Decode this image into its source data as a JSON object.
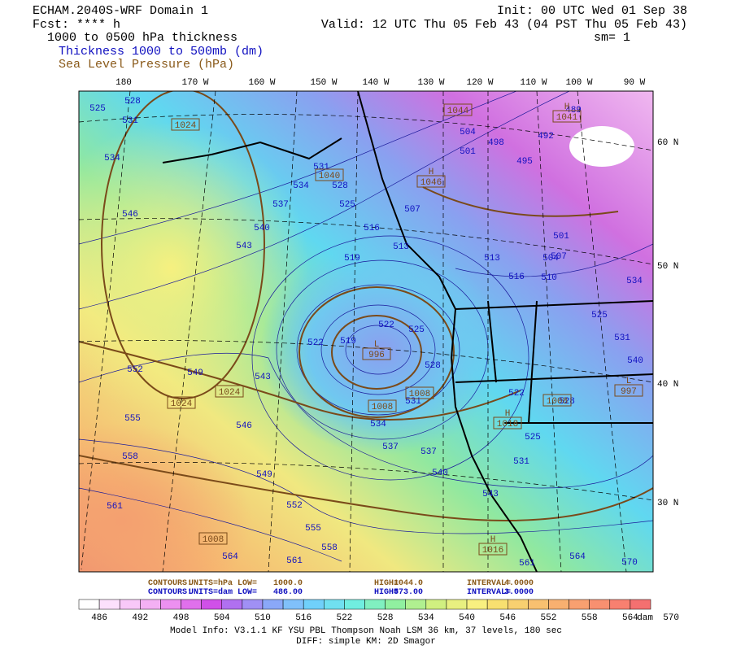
{
  "header": {
    "title": "ECHAM.2040S-WRF Domain 1",
    "fcst": "Fcst: **** h",
    "field": "1000 to 0500 hPa thickness",
    "legend_thickness": "Thickness 1000 to 500mb (dm)",
    "legend_pressure": "Sea Level Pressure (hPa)",
    "init": "Init: 00 UTC Wed 01 Sep 38",
    "valid": "Valid: 12 UTC Thu 05 Feb 43 (04 PST Thu 05 Feb 43)",
    "smoothing": "sm= 1"
  },
  "lon_labels": [
    "180",
    "170 W",
    "160 W",
    "150 W",
    "140 W",
    "130 W",
    "120 W",
    "110 W",
    "100 W",
    "90 W"
  ],
  "lat_labels": [
    "60 N",
    "50 N",
    "40 N",
    "30 N"
  ],
  "map_labels": {
    "thickness": [
      "528",
      "525",
      "531",
      "534",
      "546",
      "543",
      "540",
      "537",
      "534",
      "531",
      "528",
      "525",
      "516",
      "519",
      "507",
      "513",
      "504",
      "501",
      "498",
      "495",
      "492",
      "489",
      "501",
      "504",
      "507",
      "513",
      "510",
      "516",
      "522",
      "525",
      "519",
      "522",
      "528",
      "531",
      "534",
      "537",
      "537",
      "540",
      "543",
      "549",
      "543",
      "546",
      "549",
      "552",
      "555",
      "558",
      "561",
      "552",
      "555",
      "558",
      "561",
      "564",
      "561",
      "564",
      "570",
      "522",
      "525",
      "531",
      "528",
      "525",
      "531",
      "534",
      "540"
    ],
    "pressure": [
      {
        "center": "",
        "value": "1024"
      },
      {
        "center": "",
        "value": "1040"
      },
      {
        "center": "H",
        "value": "1046"
      },
      {
        "center": "",
        "value": "1044"
      },
      {
        "center": "H",
        "value": "1041"
      },
      {
        "center": "L",
        "value": "996"
      },
      {
        "center": "",
        "value": "1024"
      },
      {
        "center": "",
        "value": "1024"
      },
      {
        "center": "",
        "value": "1008"
      },
      {
        "center": "",
        "value": "1008"
      },
      {
        "center": "H",
        "value": "1018"
      },
      {
        "center": "",
        "value": "1008"
      },
      {
        "center": "H",
        "value": "1016"
      },
      {
        "center": "",
        "value": "1008"
      },
      {
        "center": "L",
        "value": "997"
      }
    ]
  },
  "contour_info": [
    [
      "CONTOURS:",
      "UNITS=hPa",
      "LOW=",
      "1000.0",
      "HIGH=",
      "1044.0",
      "INTERVAL=",
      "4.0000"
    ],
    [
      "CONTOURS:",
      "UNITS=dam",
      "LOW=",
      "486.00",
      "HIGH=",
      "573.00",
      "INTERVAL=",
      "3.0000"
    ]
  ],
  "colorbar": {
    "labels": [
      "486",
      "492",
      "498",
      "504",
      "510",
      "516",
      "522",
      "528",
      "534",
      "540",
      "546",
      "552",
      "558",
      "564",
      "570"
    ],
    "unit": "dam"
  },
  "footer": [
    "Model Info: V3.1.1    KF       YSU PBL   Thompson     Noah LSM  36 km,     37 levels,  180 sec",
    "DIFF: simple KM: 2D Smagor"
  ]
}
